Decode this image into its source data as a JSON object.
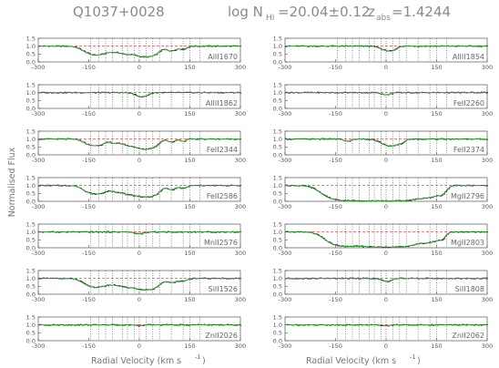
{
  "title": {
    "object": "Q1037+0028",
    "nhi_prefix": "log N",
    "nhi_sub": "HI",
    "nhi_value": "=20.04±0.12",
    "zabs_prefix": "z",
    "zabs_sub": "abs",
    "zabs_value": "=1.4244"
  },
  "ylabel": "Normalised Flux",
  "xlabel_left": "Radial Velocity  (km s",
  "xlabel_sup": "-1",
  "xlabel_right": ")",
  "colors": {
    "spectrum": "#000000",
    "model": "#2ca02c",
    "continuum": "#e03030",
    "components": "#444444",
    "axes": "#555555"
  },
  "chart_data": {
    "type": "line",
    "xlim": [
      -300,
      300
    ],
    "ylim": [
      0.0,
      1.5
    ],
    "x_ticks": [
      -300,
      -150,
      0,
      150,
      300
    ],
    "y_ticks": [
      0.0,
      0.5,
      1.0,
      1.5
    ],
    "components_left": [
      -145,
      -120,
      -100,
      -80,
      -50,
      -35,
      -15,
      0,
      20,
      40,
      60,
      95,
      130,
      150,
      180
    ],
    "components_right": [
      -145,
      -120,
      -100,
      -80,
      -50,
      -35,
      -15,
      0,
      20,
      40,
      60,
      95,
      130,
      150,
      180
    ],
    "panels": [
      {
        "col": "left",
        "row": 0,
        "ion": "AlII1670",
        "show_xticks": true,
        "features": [
          [
            -145,
            22,
            0.55
          ],
          [
            -115,
            20,
            0.5
          ],
          [
            -70,
            22,
            0.4
          ],
          [
            -40,
            14,
            0.3
          ],
          [
            0,
            30,
            0.6
          ],
          [
            20,
            25,
            0.6
          ],
          [
            45,
            14,
            0.3
          ],
          [
            95,
            14,
            0.35
          ],
          [
            130,
            10,
            0.2
          ]
        ]
      },
      {
        "col": "right",
        "row": 0,
        "ion": "AlIII1854",
        "show_xticks": true,
        "features": [
          [
            0,
            16,
            0.3
          ],
          [
            20,
            10,
            0.2
          ]
        ]
      },
      {
        "col": "left",
        "row": 1,
        "ion": "AlIII1862",
        "show_xticks": true,
        "features": [
          [
            0,
            14,
            0.25
          ],
          [
            18,
            10,
            0.15
          ]
        ]
      },
      {
        "col": "right",
        "row": 1,
        "ion": "FeII2260",
        "show_xticks": true,
        "features": [
          [
            0,
            12,
            0.15
          ]
        ]
      },
      {
        "col": "left",
        "row": 2,
        "ion": "FeII2344",
        "show_xticks": true,
        "features": [
          [
            -145,
            18,
            0.45
          ],
          [
            -115,
            15,
            0.35
          ],
          [
            -70,
            16,
            0.3
          ],
          [
            -35,
            12,
            0.25
          ],
          [
            0,
            28,
            0.55
          ],
          [
            20,
            22,
            0.55
          ],
          [
            45,
            12,
            0.25
          ],
          [
            95,
            10,
            0.2
          ],
          [
            130,
            8,
            0.15
          ]
        ]
      },
      {
        "col": "right",
        "row": 2,
        "ion": "FeII2374",
        "show_xticks": true,
        "features": [
          [
            -115,
            10,
            0.15
          ],
          [
            0,
            20,
            0.35
          ],
          [
            20,
            16,
            0.35
          ],
          [
            45,
            10,
            0.2
          ]
        ]
      },
      {
        "col": "left",
        "row": 3,
        "ion": "FeII2586",
        "show_xticks": true,
        "features": [
          [
            -145,
            20,
            0.55
          ],
          [
            -115,
            18,
            0.5
          ],
          [
            -70,
            18,
            0.45
          ],
          [
            -35,
            14,
            0.4
          ],
          [
            0,
            30,
            0.7
          ],
          [
            20,
            25,
            0.65
          ],
          [
            45,
            14,
            0.4
          ],
          [
            95,
            12,
            0.3
          ],
          [
            130,
            10,
            0.2
          ]
        ]
      },
      {
        "col": "right",
        "row": 3,
        "ion": "MgII2796",
        "show_xticks": true,
        "features": [
          [
            -145,
            35,
            1.6
          ],
          [
            -110,
            30,
            1.6
          ],
          [
            -70,
            30,
            1.6
          ],
          [
            -35,
            25,
            1.6
          ],
          [
            0,
            35,
            1.8
          ],
          [
            25,
            30,
            1.7
          ],
          [
            60,
            25,
            1.5
          ],
          [
            100,
            22,
            1.0
          ],
          [
            135,
            22,
            1.0
          ],
          [
            165,
            12,
            0.5
          ]
        ]
      },
      {
        "col": "left",
        "row": 4,
        "ion": "MnII2576",
        "show_xticks": true,
        "features": [
          [
            0,
            14,
            0.12
          ]
        ]
      },
      {
        "col": "right",
        "row": 4,
        "ion": "MgII2803",
        "show_xticks": true,
        "features": [
          [
            -145,
            30,
            1.3
          ],
          [
            -110,
            28,
            1.3
          ],
          [
            -70,
            28,
            1.3
          ],
          [
            -35,
            22,
            1.2
          ],
          [
            0,
            35,
            1.6
          ],
          [
            25,
            30,
            1.5
          ],
          [
            60,
            22,
            1.2
          ],
          [
            100,
            20,
            0.85
          ],
          [
            135,
            20,
            0.85
          ],
          [
            165,
            10,
            0.4
          ]
        ]
      },
      {
        "col": "left",
        "row": 5,
        "ion": "SiII1526",
        "show_xticks": true,
        "features": [
          [
            -145,
            22,
            0.55
          ],
          [
            -115,
            20,
            0.5
          ],
          [
            -70,
            22,
            0.45
          ],
          [
            -40,
            14,
            0.35
          ],
          [
            0,
            30,
            0.7
          ],
          [
            20,
            25,
            0.7
          ],
          [
            45,
            14,
            0.35
          ],
          [
            95,
            14,
            0.3
          ],
          [
            130,
            10,
            0.2
          ]
        ]
      },
      {
        "col": "right",
        "row": 5,
        "ion": "SiII1808",
        "show_xticks": true,
        "features": [
          [
            0,
            14,
            0.2
          ]
        ]
      },
      {
        "col": "left",
        "row": 6,
        "ion": "ZnII2026",
        "show_xticks": true,
        "features": [
          [
            0,
            10,
            0.05
          ]
        ]
      },
      {
        "col": "right",
        "row": 6,
        "ion": "ZnII2062",
        "show_xticks": true,
        "features": [
          [
            0,
            10,
            0.05
          ]
        ]
      }
    ]
  }
}
